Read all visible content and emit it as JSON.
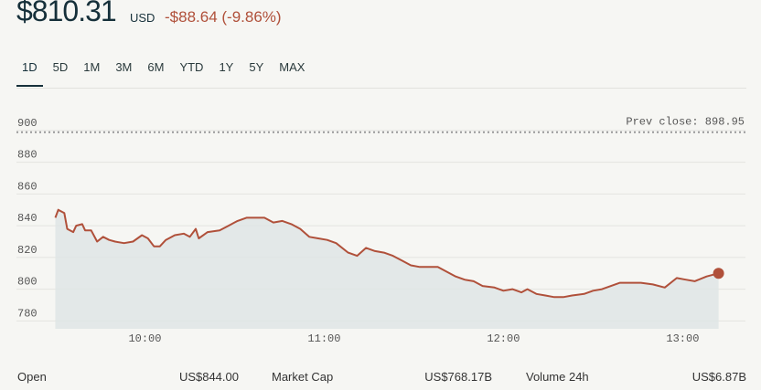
{
  "header": {
    "price": "$810.31",
    "currency": "USD",
    "change": "-$88.64 (-9.86%)"
  },
  "tabs": [
    "1D",
    "5D",
    "1M",
    "3M",
    "6M",
    "YTD",
    "1Y",
    "5Y",
    "MAX"
  ],
  "stats": [
    {
      "label": "Open",
      "value": "US$844.00"
    },
    {
      "label": "Market Cap",
      "value": "US$768.17B"
    },
    {
      "label": "Volume 24h",
      "value": "US$6.87B"
    }
  ],
  "chart_data": {
    "type": "line",
    "x": [
      "09:30",
      "09:31",
      "09:33",
      "09:34",
      "09:36",
      "09:37",
      "09:39",
      "09:40",
      "09:42",
      "09:44",
      "09:46",
      "09:48",
      "09:50",
      "09:53",
      "09:56",
      "09:59",
      "10:01",
      "10:03",
      "10:05",
      "10:07",
      "10:10",
      "10:13",
      "10:15",
      "10:17",
      "10:18",
      "10:21",
      "10:25",
      "10:28",
      "10:31",
      "10:34",
      "10:37",
      "10:40",
      "10:43",
      "10:46",
      "10:49",
      "10:52",
      "10:55",
      "10:58",
      "11:01",
      "11:04",
      "11:08",
      "11:11",
      "11:14",
      "11:17",
      "11:20",
      "11:23",
      "11:26",
      "11:29",
      "11:32",
      "11:35",
      "11:38",
      "11:41",
      "11:44",
      "11:47",
      "11:50",
      "11:53",
      "11:57",
      "12:00",
      "12:03",
      "12:06",
      "12:08",
      "12:11",
      "12:14",
      "12:17",
      "12:20",
      "12:23",
      "12:27",
      "12:30",
      "12:33",
      "12:36",
      "12:39",
      "12:42",
      "12:46",
      "12:50",
      "12:54",
      "12:58",
      "13:01",
      "13:04",
      "13:08",
      "13:12"
    ],
    "values": [
      845,
      850,
      848,
      838,
      836,
      840,
      841,
      837,
      837,
      830,
      833,
      831,
      830,
      829,
      830,
      834,
      832,
      827,
      827,
      831,
      834,
      835,
      833,
      838,
      832,
      836,
      837,
      840,
      843,
      845,
      845,
      845,
      842,
      843,
      841,
      838,
      833,
      832,
      831,
      829,
      823,
      821,
      826,
      824,
      823,
      821,
      818,
      815,
      814,
      814,
      814,
      811,
      808,
      806,
      805,
      802,
      801,
      799,
      800,
      798,
      800,
      797,
      796,
      795,
      795,
      796,
      797,
      799,
      800,
      802,
      804,
      804,
      804,
      803,
      801,
      807,
      806,
      805,
      808,
      810
    ],
    "color": "#b0503a",
    "xlim": [
      "09:17",
      "13:21"
    ],
    "xticks": [
      "10:00",
      "11:00",
      "12:00",
      "13:00"
    ],
    "ylim": [
      775,
      908
    ],
    "yticks": [
      780,
      800,
      820,
      840,
      860,
      880,
      900
    ],
    "grid": true,
    "prev_close": {
      "value": 898.95,
      "label": "Prev close: 898.95"
    }
  }
}
